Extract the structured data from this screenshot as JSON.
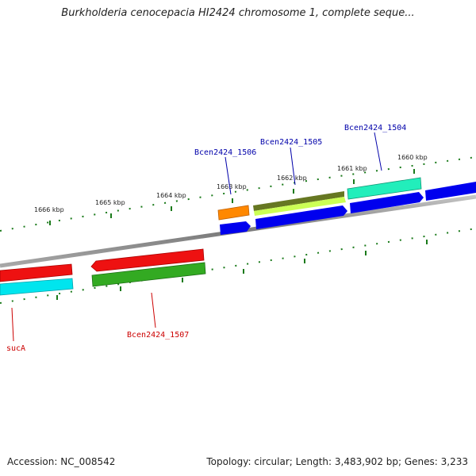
{
  "title": "Burkholderia cenocepacia HI2424 chromosome 1, complete seque...",
  "footer": {
    "accession": "Accession: NC_008542",
    "summary": "Topology: circular; Length: 3,483,902 bp; Genes: 3,233"
  },
  "ticks": [
    "1666 kbp",
    "1665 kbp",
    "1664 kbp",
    "1663 kbp",
    "1662 kbp",
    "1661 kbp",
    "1660 kbp"
  ],
  "genes": {
    "sucA": "sucA",
    "bcen1507": "Bcen2424_1507",
    "bcen1506": "Bcen2424_1506",
    "bcen1505": "Bcen2424_1505",
    "bcen1504": "Bcen2424_1504"
  },
  "colors": {
    "backbone": "#8a8a8a",
    "tick": "#1a7a1a",
    "label_forward": "#0000aa",
    "label_reverse": "#cc0000",
    "red": "#ee1111",
    "green": "#33aa22",
    "cyan": "#00e5ee",
    "orange": "#ff8800",
    "olive": "#667722",
    "lime": "#ccff55",
    "teal": "#22eebb",
    "blue": "#0000ee"
  }
}
